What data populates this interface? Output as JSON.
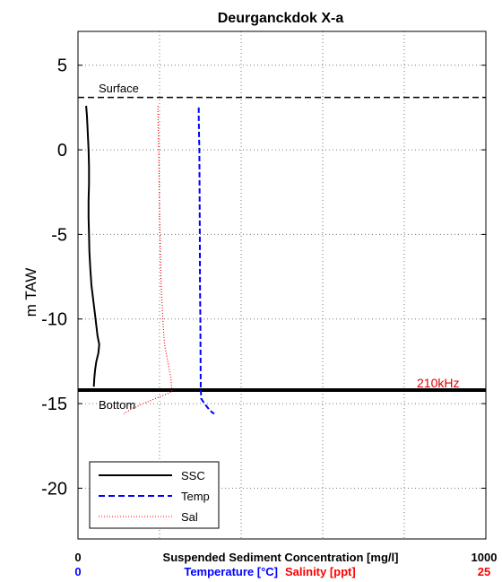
{
  "chart_data": {
    "type": "line",
    "title": "Deurganckdok X-a",
    "ylabel": "m TAW",
    "ylim": [
      -23,
      7
    ],
    "yticks": [
      5,
      0,
      -5,
      -10,
      -15,
      -20
    ],
    "grid": true,
    "legend_position": "bottom-left",
    "x_axes": [
      {
        "label": "Suspended Sediment Concentration [mg/l]",
        "min_label": "0",
        "max_label": "1000",
        "min": 0,
        "max": 1000,
        "color": "#000000"
      },
      {
        "label": "Temperature [°C]",
        "min_label": "0",
        "min": 0,
        "max": 25,
        "color": "#0000ff"
      },
      {
        "label": "Salinity [ppt]",
        "max_label": "25",
        "min": 0,
        "max": 25,
        "color": "#ff0000"
      }
    ],
    "reference_lines": [
      {
        "name": "surface",
        "label": "Surface",
        "y": 3.1,
        "style": "dashed",
        "color": "#000000"
      },
      {
        "name": "bottom",
        "label": "Bottom",
        "y": -14.2,
        "style": "solid",
        "color": "#000000"
      }
    ],
    "annotations": [
      {
        "text": "210kHz",
        "color": "#e00000"
      }
    ],
    "series": [
      {
        "name": "SSC",
        "axis": "ssc",
        "color": "#000000",
        "style": "solid",
        "points": [
          [
            20,
            2.6
          ],
          [
            22,
            2.0
          ],
          [
            24,
            1.0
          ],
          [
            26,
            0
          ],
          [
            27,
            -1
          ],
          [
            27,
            -2
          ],
          [
            26,
            -3
          ],
          [
            26,
            -4
          ],
          [
            27,
            -5
          ],
          [
            28,
            -6
          ],
          [
            30,
            -7
          ],
          [
            33,
            -8
          ],
          [
            38,
            -9
          ],
          [
            43,
            -10
          ],
          [
            48,
            -11
          ],
          [
            52,
            -11.5
          ],
          [
            50,
            -12
          ],
          [
            45,
            -12.5
          ],
          [
            42,
            -13
          ],
          [
            40,
            -13.5
          ],
          [
            39,
            -14
          ]
        ]
      },
      {
        "name": "Temp",
        "axis": "temp",
        "color": "#0000ff",
        "style": "dashed",
        "points": [
          [
            7.4,
            2.5
          ],
          [
            7.4,
            2.0
          ],
          [
            7.42,
            1.0
          ],
          [
            7.44,
            0
          ],
          [
            7.45,
            -2
          ],
          [
            7.46,
            -4
          ],
          [
            7.47,
            -6
          ],
          [
            7.48,
            -8
          ],
          [
            7.5,
            -10
          ],
          [
            7.51,
            -12
          ],
          [
            7.52,
            -14
          ],
          [
            7.55,
            -14.7
          ],
          [
            7.75,
            -15.0
          ],
          [
            8.0,
            -15.3
          ],
          [
            8.2,
            -15.5
          ],
          [
            8.35,
            -15.6
          ]
        ]
      },
      {
        "name": "Sal",
        "axis": "sal",
        "color": "#ff0000",
        "style": "dotted",
        "points": [
          [
            4.9,
            2.6
          ],
          [
            4.92,
            1.5
          ],
          [
            4.95,
            0
          ],
          [
            4.98,
            -2
          ],
          [
            5.0,
            -4
          ],
          [
            5.05,
            -6
          ],
          [
            5.1,
            -8
          ],
          [
            5.2,
            -10
          ],
          [
            5.3,
            -11.5
          ],
          [
            5.5,
            -12.5
          ],
          [
            5.7,
            -13.5
          ],
          [
            5.75,
            -14.3
          ],
          [
            5.0,
            -14.6
          ],
          [
            4.0,
            -15.0
          ],
          [
            3.3,
            -15.3
          ],
          [
            2.8,
            -15.6
          ]
        ]
      }
    ]
  }
}
